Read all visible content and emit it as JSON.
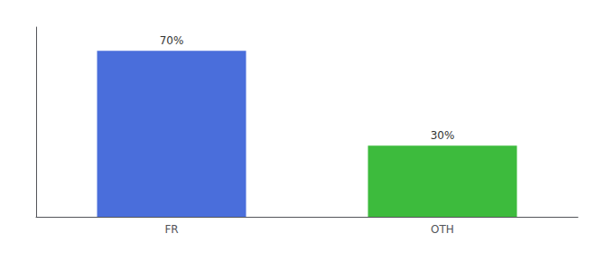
{
  "chart_data": {
    "type": "bar",
    "categories": [
      "FR",
      "OTH"
    ],
    "values": [
      70,
      30
    ],
    "value_labels": [
      "70%",
      "30%"
    ],
    "data_labels": true,
    "colors": [
      "#4a6edb",
      "#3dbb3d"
    ],
    "ylim": [
      0,
      80
    ],
    "grid": false,
    "tick_labels": "x"
  }
}
